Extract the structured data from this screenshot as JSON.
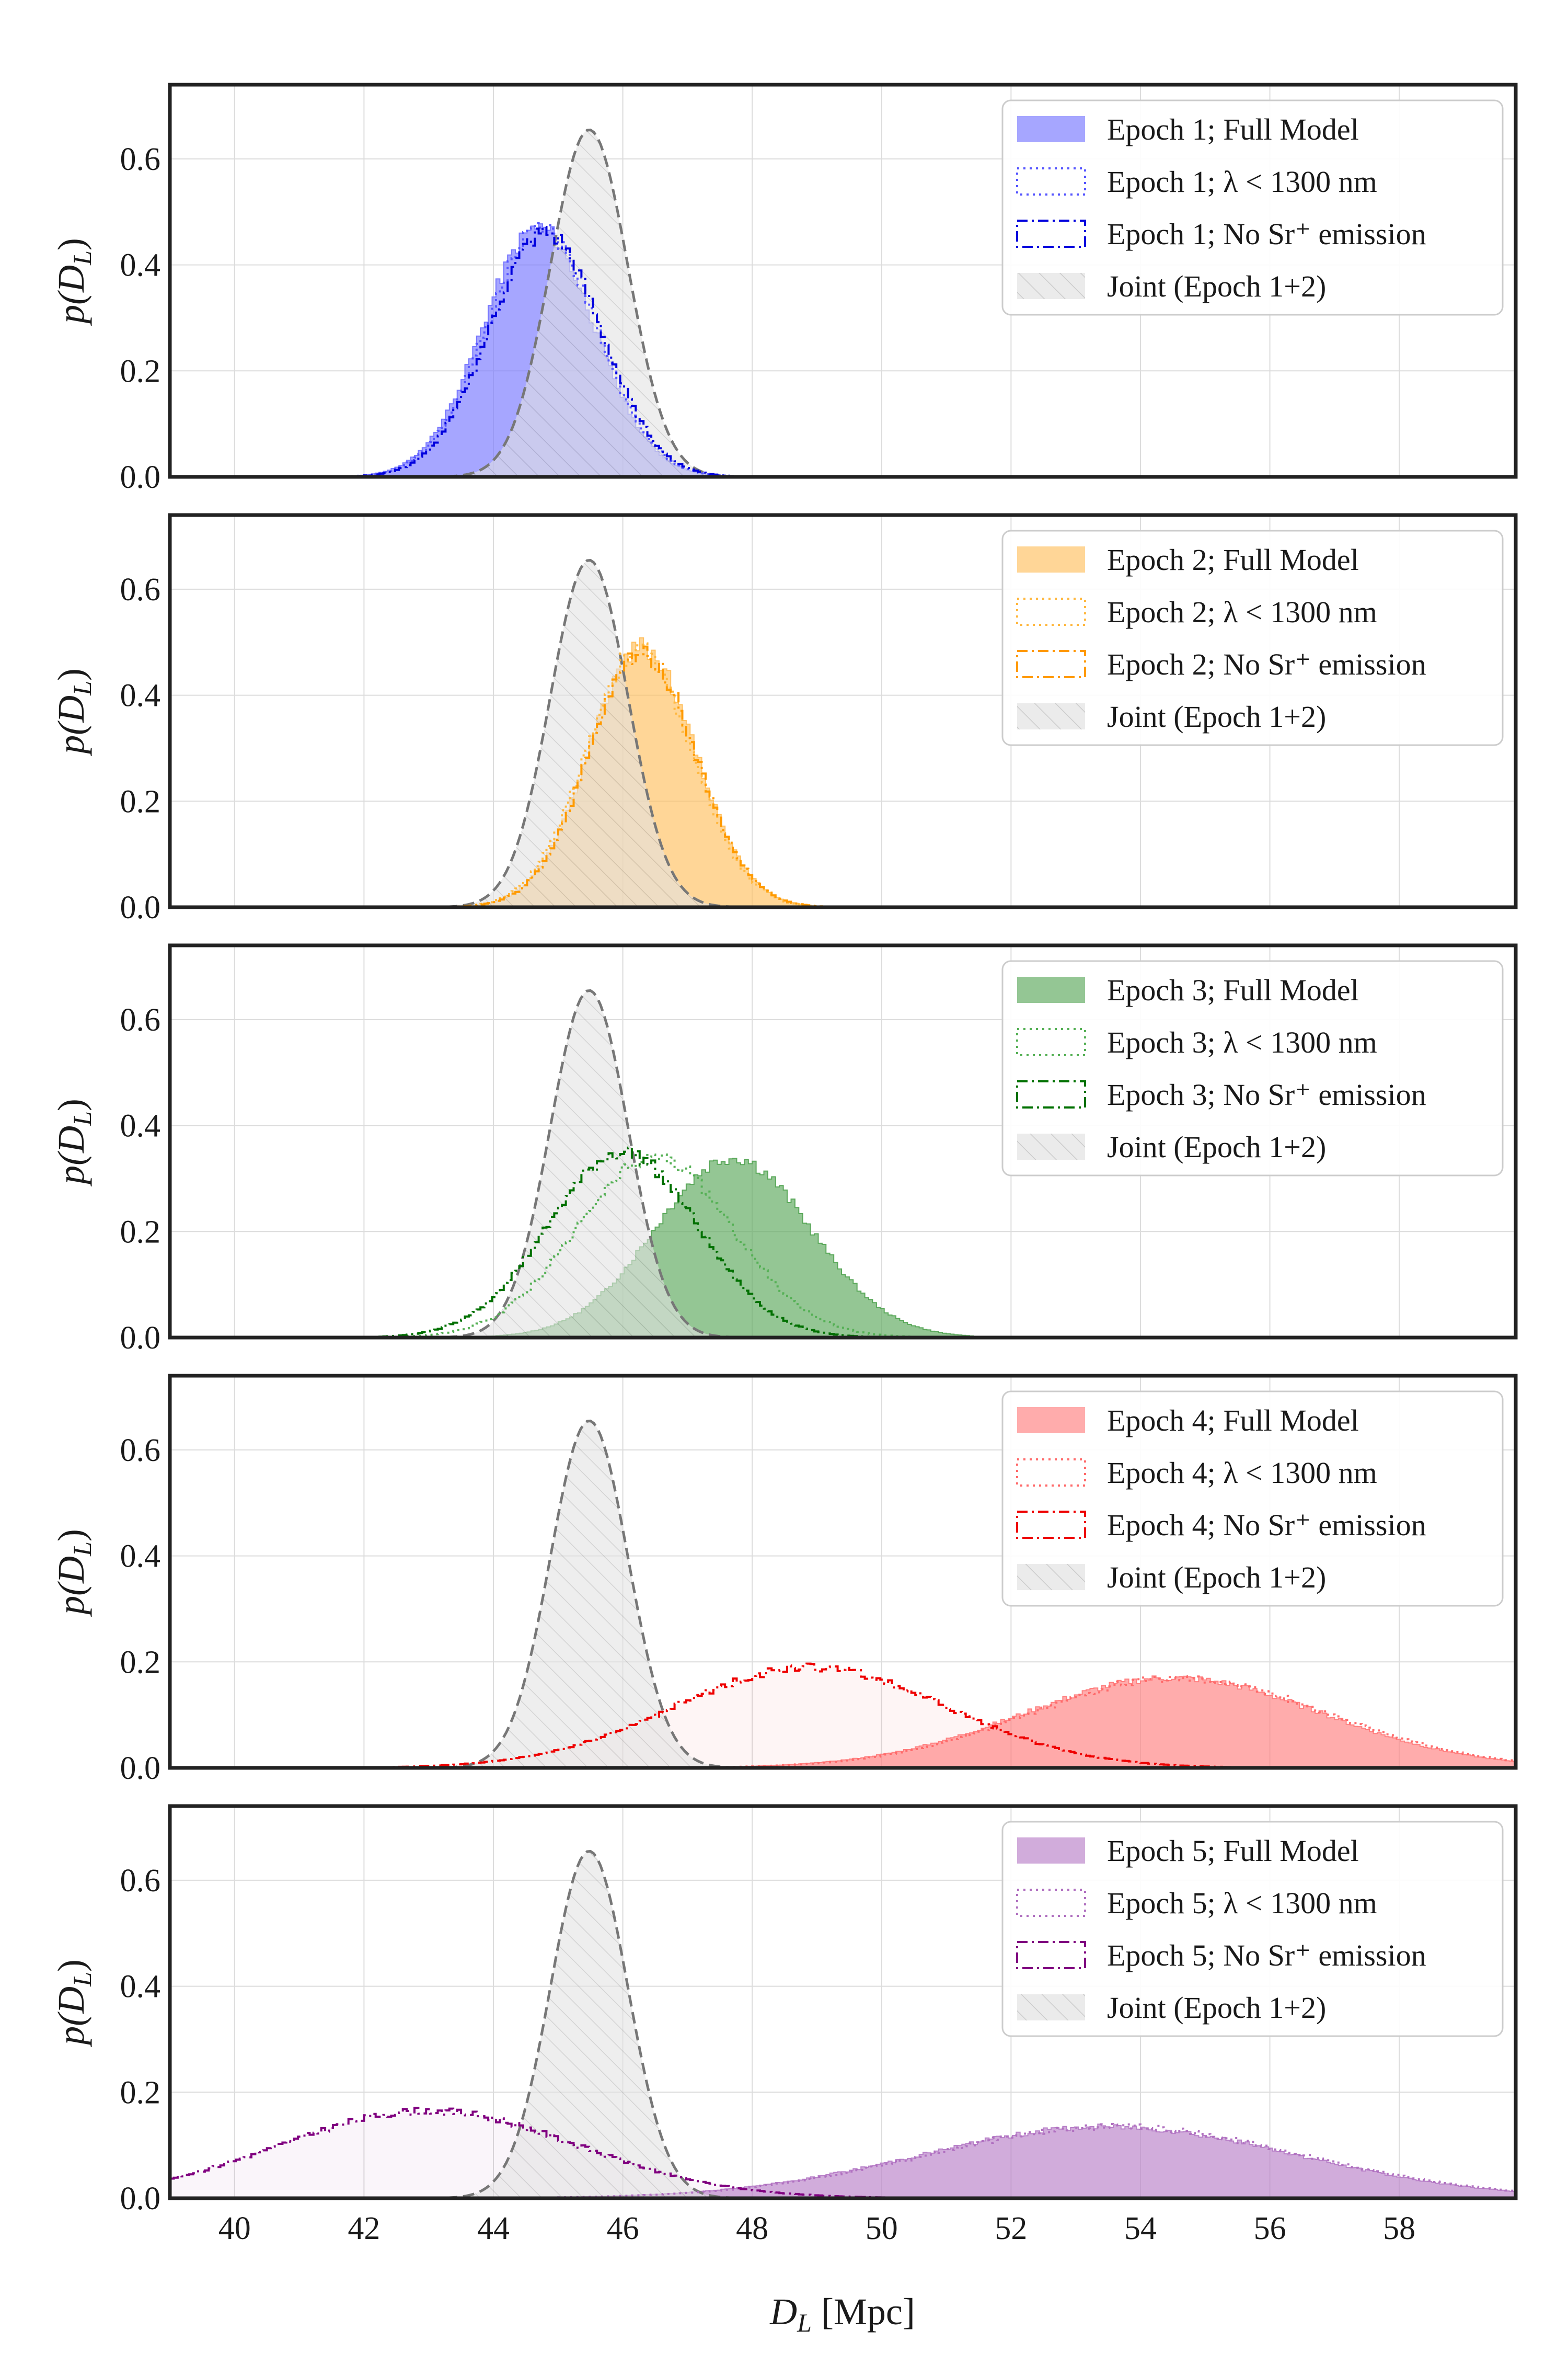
{
  "figure": {
    "xlabel": "D",
    "xlabel_sub": "L",
    "xlabel_unit": " [Mpc]",
    "ylabel": "p(D",
    "ylabel_sub": "L",
    "ylabel_close": ")"
  },
  "chart_data": [
    {
      "type": "histogram",
      "title": "",
      "xlim": [
        39,
        59.8
      ],
      "ylim": [
        0,
        0.74
      ],
      "x_ticks": [
        "40",
        "42",
        "44",
        "46",
        "48",
        "50",
        "52",
        "54",
        "56",
        "58"
      ],
      "y_ticks": [
        "0.0",
        "0.2",
        "0.4",
        "0.6"
      ],
      "legend_position": "top-right",
      "series": [
        {
          "name": "Epoch 1; Full Model",
          "style": "filled",
          "color": "#7777ff",
          "mean": 44.7,
          "sd": 0.86,
          "peak": 0.47
        },
        {
          "name": "Epoch 1; λ < 1300 nm",
          "style": "dotted",
          "color": "#5555ff",
          "mean": 44.75,
          "sd": 0.86,
          "peak": 0.465
        },
        {
          "name": "Epoch 1; No Sr+ emission",
          "style": "dashdot",
          "color": "#0000dd",
          "mean": 44.8,
          "sd": 0.86,
          "peak": 0.46
        },
        {
          "name": "Joint (Epoch 1+2)",
          "style": "hatched",
          "color": "#777777",
          "mean": 45.48,
          "sd": 0.6,
          "peak": 0.655
        }
      ],
      "legend": [
        {
          "label": "Epoch 1; Full Model"
        },
        {
          "label": "Epoch 1; λ < 1300 nm"
        },
        {
          "label": "Epoch 1; No Sr⁺ emission"
        },
        {
          "label": "Joint (Epoch 1+2)"
        }
      ]
    },
    {
      "type": "histogram",
      "title": "",
      "xlim": [
        39,
        59.8
      ],
      "ylim": [
        0,
        0.74
      ],
      "x_ticks": [
        "40",
        "42",
        "44",
        "46",
        "48",
        "50",
        "52",
        "54",
        "56",
        "58"
      ],
      "y_ticks": [
        "0.0",
        "0.2",
        "0.4",
        "0.6"
      ],
      "legend_position": "top-right",
      "series": [
        {
          "name": "Epoch 2; Full Model",
          "style": "filled",
          "color": "#ffc060",
          "mean": 46.3,
          "sd": 0.82,
          "peak": 0.49
        },
        {
          "name": "Epoch 2; λ < 1300 nm",
          "style": "dotted",
          "color": "#ffb840",
          "mean": 46.25,
          "sd": 0.82,
          "peak": 0.485
        },
        {
          "name": "Epoch 2; No Sr+ emission",
          "style": "dashdot",
          "color": "#ff9a00",
          "mean": 46.3,
          "sd": 0.82,
          "peak": 0.48
        },
        {
          "name": "Joint (Epoch 1+2)",
          "style": "hatched",
          "color": "#777777",
          "mean": 45.48,
          "sd": 0.6,
          "peak": 0.655
        }
      ],
      "legend": [
        {
          "label": "Epoch 2; Full Model"
        },
        {
          "label": "Epoch 2; λ < 1300 nm"
        },
        {
          "label": "Epoch 2; No Sr⁺ emission"
        },
        {
          "label": "Joint (Epoch 1+2)"
        }
      ]
    },
    {
      "type": "histogram",
      "title": "",
      "xlim": [
        39,
        59.8
      ],
      "ylim": [
        0,
        0.74
      ],
      "x_ticks": [
        "40",
        "42",
        "44",
        "46",
        "48",
        "50",
        "52",
        "54",
        "56",
        "58"
      ],
      "y_ticks": [
        "0.0",
        "0.2",
        "0.4",
        "0.6"
      ],
      "legend_position": "top-right",
      "series": [
        {
          "name": "Epoch 3; Full Model",
          "style": "filled",
          "color": "#5aa85a",
          "mean": 47.7,
          "sd": 1.2,
          "peak": 0.34
        },
        {
          "name": "Epoch 3; λ < 1300 nm",
          "style": "dotted",
          "color": "#55b055",
          "mean": 46.5,
          "sd": 1.2,
          "peak": 0.34
        },
        {
          "name": "Epoch 3; No Sr+ emission",
          "style": "dashdot",
          "color": "#007000",
          "mean": 46.0,
          "sd": 1.15,
          "peak": 0.35
        },
        {
          "name": "Joint (Epoch 1+2)",
          "style": "hatched",
          "color": "#777777",
          "mean": 45.48,
          "sd": 0.6,
          "peak": 0.655
        }
      ],
      "legend": [
        {
          "label": "Epoch 3; Full Model"
        },
        {
          "label": "Epoch 3; λ < 1300 nm"
        },
        {
          "label": "Epoch 3; No Sr⁺ emission"
        },
        {
          "label": "Joint (Epoch 1+2)"
        }
      ]
    },
    {
      "type": "histogram",
      "title": "",
      "xlim": [
        39,
        59.8
      ],
      "ylim": [
        0,
        0.74
      ],
      "x_ticks": [
        "40",
        "42",
        "44",
        "46",
        "48",
        "50",
        "52",
        "54",
        "56",
        "58"
      ],
      "y_ticks": [
        "0.0",
        "0.2",
        "0.4",
        "0.6"
      ],
      "legend_position": "top-right",
      "series": [
        {
          "name": "Epoch 4; Full Model",
          "style": "filled",
          "color": "#ff8080",
          "mean": 54.5,
          "sd": 2.3,
          "peak": 0.17
        },
        {
          "name": "Epoch 4; λ < 1300 nm",
          "style": "dotted",
          "color": "#ff6a6a",
          "mean": 54.6,
          "sd": 2.3,
          "peak": 0.17
        },
        {
          "name": "Epoch 4; No Sr+ emission",
          "style": "dashdot",
          "color": "#ee0000",
          "mean": 48.9,
          "sd": 2.1,
          "peak": 0.19
        },
        {
          "name": "Joint (Epoch 1+2)",
          "style": "hatched",
          "color": "#777777",
          "mean": 45.48,
          "sd": 0.6,
          "peak": 0.655
        }
      ],
      "legend": [
        {
          "label": "Epoch 4; Full Model"
        },
        {
          "label": "Epoch 4; λ < 1300 nm"
        },
        {
          "label": "Epoch 4; No Sr⁺ emission"
        },
        {
          "label": "Joint (Epoch 1+2)"
        }
      ]
    },
    {
      "type": "histogram",
      "title": "",
      "xlim": [
        39,
        59.8
      ],
      "ylim": [
        0,
        0.74
      ],
      "x_ticks": [
        "40",
        "42",
        "44",
        "46",
        "48",
        "50",
        "52",
        "54",
        "56",
        "58"
      ],
      "y_ticks": [
        "0.0",
        "0.2",
        "0.4",
        "0.6"
      ],
      "legend_position": "top-right",
      "series": [
        {
          "name": "Epoch 5; Full Model",
          "style": "filled",
          "color": "#b880c8",
          "mean": 53.5,
          "sd": 2.9,
          "peak": 0.135
        },
        {
          "name": "Epoch 5; λ < 1300 nm",
          "style": "dotted",
          "color": "#b070c0",
          "mean": 53.6,
          "sd": 2.9,
          "peak": 0.135
        },
        {
          "name": "Epoch 5; No Sr+ emission",
          "style": "dashdot",
          "color": "#800080",
          "mean": 43.0,
          "sd": 2.3,
          "peak": 0.165
        },
        {
          "name": "Joint (Epoch 1+2)",
          "style": "hatched",
          "color": "#777777",
          "mean": 45.48,
          "sd": 0.6,
          "peak": 0.655
        }
      ],
      "legend": [
        {
          "label": "Epoch 5; Full Model"
        },
        {
          "label": "Epoch 5; λ < 1300 nm"
        },
        {
          "label": "Epoch 5; No Sr⁺ emission"
        },
        {
          "label": "Joint (Epoch 1+2)"
        }
      ]
    }
  ]
}
